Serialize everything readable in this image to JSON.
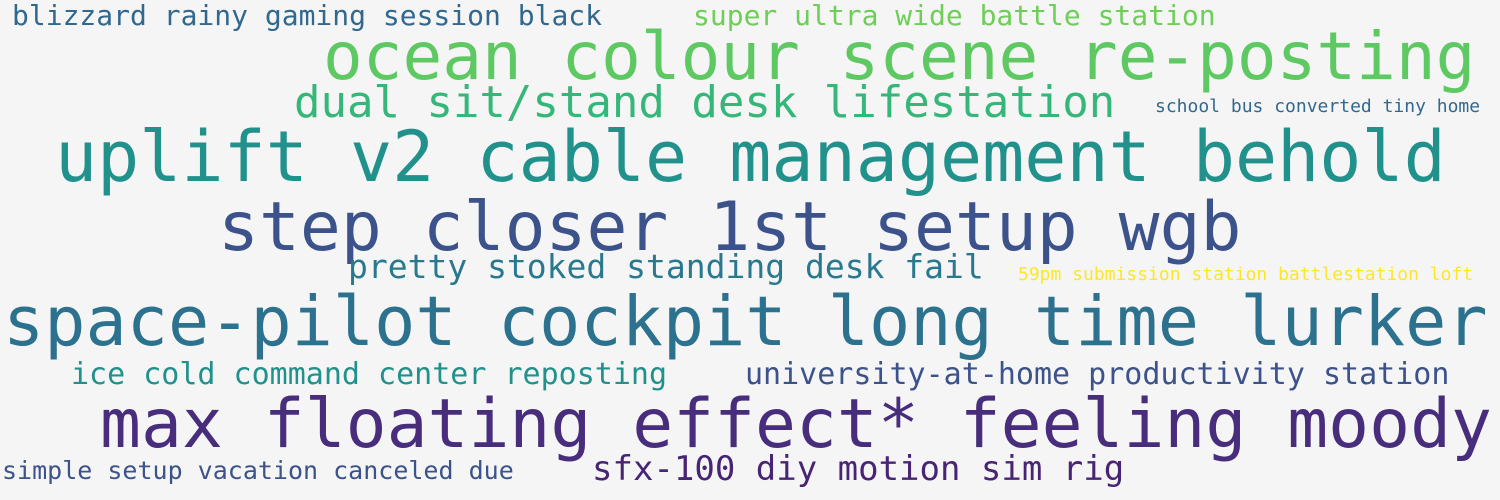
{
  "words": [
    {
      "text": "blizzard rainy gaming session black",
      "color": "#31688e"
    },
    {
      "text": "super ultra wide battle station",
      "color": "#6ece58"
    },
    {
      "text": "ocean colour scene re-posting",
      "color": "#5ec962"
    },
    {
      "text": "dual sit/stand desk lifestation",
      "color": "#35b779"
    },
    {
      "text": "school bus converted tiny home",
      "color": "#31688e"
    },
    {
      "text": "uplift v2 cable management behold",
      "color": "#21918c"
    },
    {
      "text": "step closer 1st setup wgb",
      "color": "#3b528b"
    },
    {
      "text": "pretty stoked standing desk fail",
      "color": "#2a788e"
    },
    {
      "text": "59pm submission station battlestation loft",
      "color": "#fde725"
    },
    {
      "text": "space-pilot cockpit long time lurker",
      "color": "#2c728e"
    },
    {
      "text": "ice cold command center reposting",
      "color": "#21918c"
    },
    {
      "text": "university-at-home productivity station",
      "color": "#3b528b"
    },
    {
      "text": "max floating effect* feeling moody",
      "color": "#472d7b"
    },
    {
      "text": "simple setup vacation canceled due",
      "color": "#3b528b"
    },
    {
      "text": "sfx-100 diy motion sim rig",
      "color": "#482475"
    }
  ]
}
